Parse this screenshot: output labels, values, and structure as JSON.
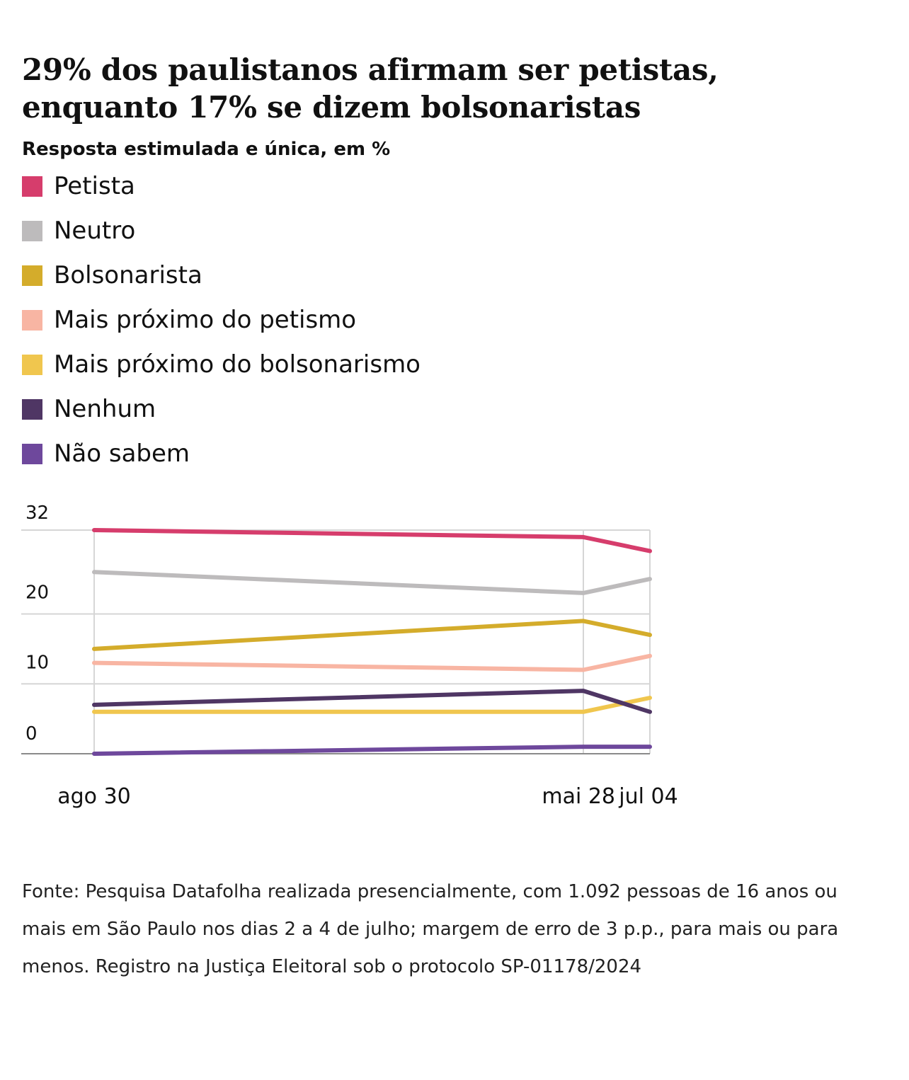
{
  "title": "29% dos paulistanos afirmam ser petistas, enquanto 17% se dizem bolsonaristas",
  "subtitle": "Resposta estimulada e única, em %",
  "source": "Fonte: Pesquisa Datafolha realizada presencialmente, com 1.092 pessoas de 16 anos ou mais em São Paulo nos dias 2 a 4 de julho; margem de erro de 3 p.p., para mais ou para menos. Registro na Justiça Eleitoral sob o protocolo SP-01178/2024",
  "legend": [
    {
      "name": "Petista",
      "color": "#d63d6c"
    },
    {
      "name": "Neutro",
      "color": "#bdbbbc"
    },
    {
      "name": "Bolsonarista",
      "color": "#d4ac2b"
    },
    {
      "name": "Mais próximo do petismo",
      "color": "#f8b5a3"
    },
    {
      "name": "Mais próximo do bolsonarismo",
      "color": "#f0c64e"
    },
    {
      "name": "Nenhum",
      "color": "#4f3664"
    },
    {
      "name": "Não sabem",
      "color": "#6e489c"
    }
  ],
  "chart_data": {
    "type": "line",
    "x": [
      "2023-08-30",
      "2024-05-28",
      "2024-07-04"
    ],
    "x_tick_labels": [
      "ago 30",
      "mai 28",
      "jul 04"
    ],
    "y_tick_labels": [
      "0",
      "10",
      "20",
      "32"
    ],
    "grid": true,
    "legend_position": "top-left",
    "series": [
      {
        "name": "Petista",
        "color": "#d63d6c",
        "values": [
          32,
          31,
          29
        ]
      },
      {
        "name": "Neutro",
        "color": "#bdbbbc",
        "values": [
          26,
          23,
          25
        ]
      },
      {
        "name": "Bolsonarista",
        "color": "#d4ac2b",
        "values": [
          15,
          19,
          17
        ]
      },
      {
        "name": "Mais próximo do petismo",
        "color": "#f8b5a3",
        "values": [
          13,
          12,
          14
        ]
      },
      {
        "name": "Mais próximo do bolsonarismo",
        "color": "#f0c64e",
        "values": [
          6,
          6,
          8
        ]
      },
      {
        "name": "Nenhum",
        "color": "#4f3664",
        "values": [
          7,
          9,
          6
        ]
      },
      {
        "name": "Não sabem",
        "color": "#6e489c",
        "values": [
          0,
          1,
          1
        ]
      }
    ]
  }
}
